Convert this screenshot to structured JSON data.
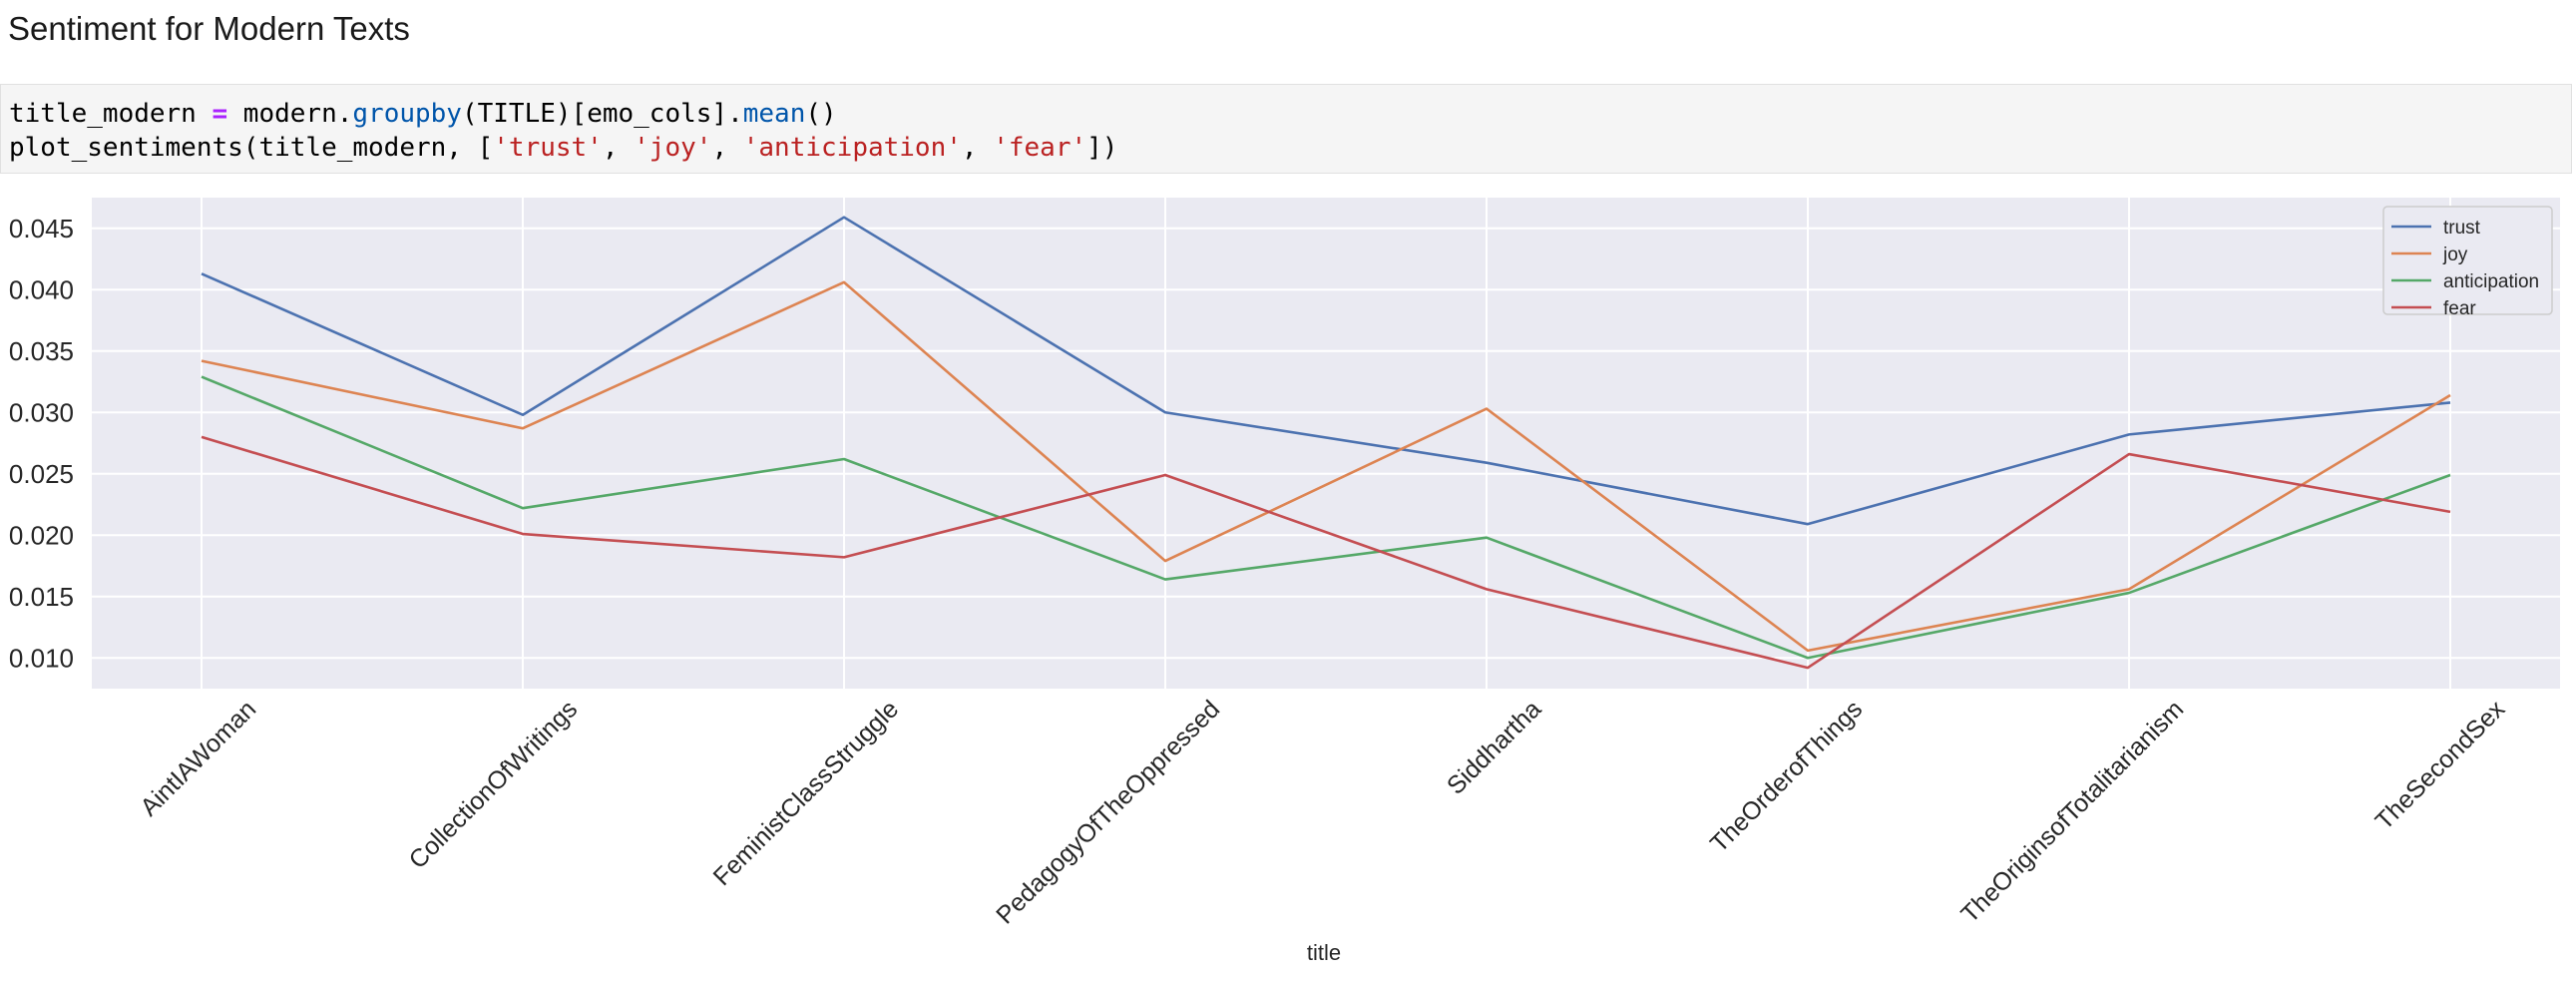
{
  "notebook": {
    "heading": "Sentiment for Modern Texts",
    "code": {
      "line1": {
        "lhs": "title_modern ",
        "op": "=",
        "obj": " modern.",
        "fn1": "groupby",
        "mid": "(TITLE)[emo_cols].",
        "fn2": "mean",
        "end": "()"
      },
      "line2": {
        "start": "plot_sentiments(title_modern, [",
        "s1": "'trust'",
        "sep1": ", ",
        "s2": "'joy'",
        "sep2": ", ",
        "s3": "'anticipation'",
        "sep3": ", ",
        "s4": "'fear'",
        "end": "])"
      }
    }
  },
  "chart_data": {
    "type": "line",
    "title": "",
    "xlabel": "title",
    "ylabel": "",
    "categories": [
      "AintIAWoman",
      "CollectionOfWritings",
      "FeministClassStruggle",
      "PedagogyOfTheOppressed",
      "Siddhartha",
      "TheOrderofThings",
      "TheOriginsofTotalitarianism",
      "TheSecondSex"
    ],
    "ylim": [
      0.0075,
      0.0475
    ],
    "yticks": [
      "0.010",
      "0.015",
      "0.020",
      "0.025",
      "0.030",
      "0.035",
      "0.040",
      "0.045"
    ],
    "grid": true,
    "legend_position": "top-right",
    "series": [
      {
        "name": "trust",
        "color": "#4c72b0",
        "values": [
          0.0413,
          0.0298,
          0.0459,
          0.03,
          0.0259,
          0.0209,
          0.0282,
          0.0308
        ]
      },
      {
        "name": "joy",
        "color": "#dd8452",
        "values": [
          0.0342,
          0.0287,
          0.0406,
          0.0179,
          0.0303,
          0.0106,
          0.0156,
          0.0314
        ]
      },
      {
        "name": "anticipation",
        "color": "#55a868",
        "values": [
          0.0329,
          0.0222,
          0.0262,
          0.0164,
          0.0198,
          0.01,
          0.0153,
          0.0249
        ]
      },
      {
        "name": "fear",
        "color": "#c44e52",
        "values": [
          0.028,
          0.0201,
          0.0182,
          0.0249,
          0.0156,
          0.0092,
          0.0266,
          0.0219
        ]
      }
    ]
  }
}
